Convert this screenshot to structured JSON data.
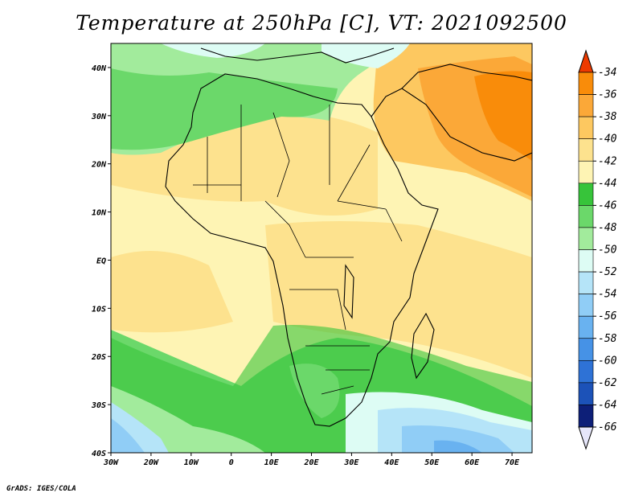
{
  "title": "Temperature at 250hPa [C], VT: 2021092500",
  "credit": "GrADS: IGES/COLA",
  "map": {
    "lon_range": [
      -30,
      75
    ],
    "lat_range": [
      -40,
      45
    ],
    "x_ticks": [
      {
        "lon": -30,
        "label": "30W"
      },
      {
        "lon": -20,
        "label": "20W"
      },
      {
        "lon": -10,
        "label": "10W"
      },
      {
        "lon": 0,
        "label": "0"
      },
      {
        "lon": 10,
        "label": "10E"
      },
      {
        "lon": 20,
        "label": "20E"
      },
      {
        "lon": 30,
        "label": "30E"
      },
      {
        "lon": 40,
        "label": "40E"
      },
      {
        "lon": 50,
        "label": "50E"
      },
      {
        "lon": 60,
        "label": "60E"
      },
      {
        "lon": 70,
        "label": "70E"
      }
    ],
    "y_ticks": [
      {
        "lat": 40,
        "label": "40N"
      },
      {
        "lat": 30,
        "label": "30N"
      },
      {
        "lat": 20,
        "label": "20N"
      },
      {
        "lat": 10,
        "label": "10N"
      },
      {
        "lat": 0,
        "label": "EQ"
      },
      {
        "lat": -10,
        "label": "10S"
      },
      {
        "lat": -20,
        "label": "20S"
      },
      {
        "lat": -30,
        "label": "30S"
      },
      {
        "lat": -40,
        "label": "40S"
      }
    ]
  },
  "colorbar": {
    "levels": [
      {
        "label": "-34",
        "color": "#f05a00"
      },
      {
        "label": "-36",
        "color": "#f98c0a"
      },
      {
        "label": "-38",
        "color": "#fba838"
      },
      {
        "label": "-40",
        "color": "#fdc860"
      },
      {
        "label": "-42",
        "color": "#fde28e"
      },
      {
        "label": "-44",
        "color": "#fef4b4"
      },
      {
        "label": "-46",
        "color": "#37c43a"
      },
      {
        "label": "-48",
        "color": "#6bd86a"
      },
      {
        "label": "-50",
        "color": "#a2eb9c"
      },
      {
        "label": "-52",
        "color": "#ddfcf4"
      },
      {
        "label": "-54",
        "color": "#b5e4f8"
      },
      {
        "label": "-56",
        "color": "#90cdf6"
      },
      {
        "label": "-58",
        "color": "#69b2f0"
      },
      {
        "label": "-60",
        "color": "#4692e6"
      },
      {
        "label": "-62",
        "color": "#2e72d6"
      },
      {
        "label": "-64",
        "color": "#1c52b8"
      },
      {
        "label": "-66",
        "color": "#0d1f78"
      }
    ],
    "top_color": "#ee3a00",
    "bottom_color": "#e6e6fa"
  }
}
